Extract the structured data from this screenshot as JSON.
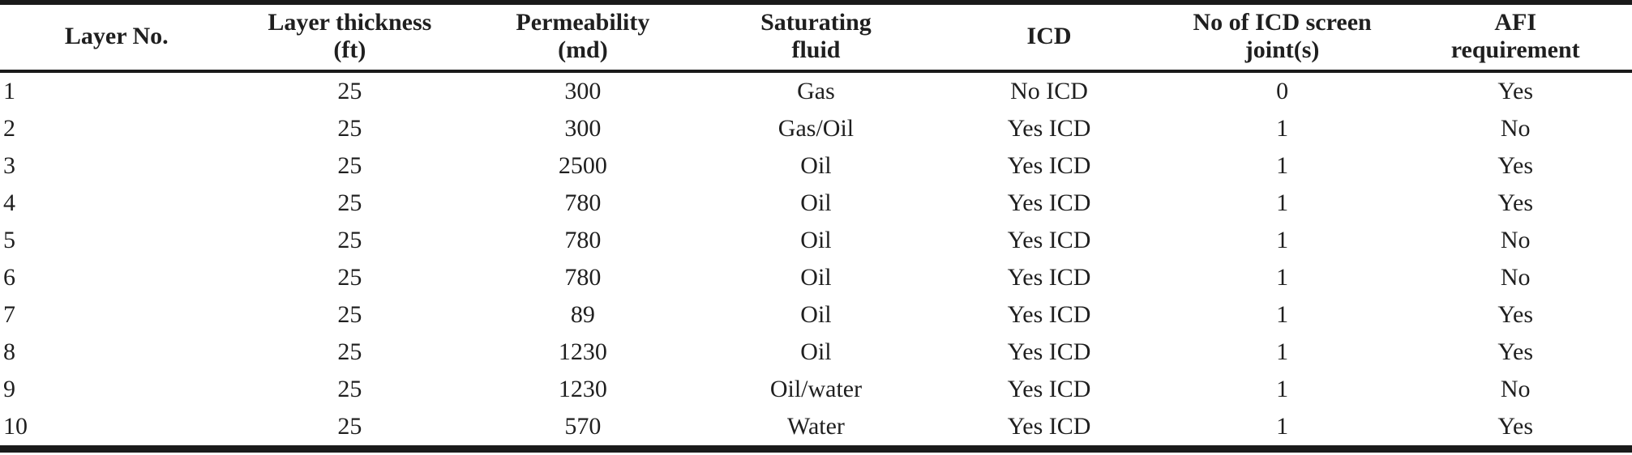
{
  "table": {
    "headers": [
      "Layer No.",
      "Layer thickness\n(ft)",
      "Permeability\n(md)",
      "Saturating\nfluid",
      "ICD",
      "No of ICD screen\njoint(s)",
      "AFI\nrequirement"
    ],
    "rows": [
      [
        "1",
        "25",
        "300",
        "Gas",
        "No ICD",
        "0",
        "Yes"
      ],
      [
        "2",
        "25",
        "300",
        "Gas/Oil",
        "Yes ICD",
        "1",
        "No"
      ],
      [
        "3",
        "25",
        "2500",
        "Oil",
        "Yes ICD",
        "1",
        "Yes"
      ],
      [
        "4",
        "25",
        "780",
        "Oil",
        "Yes ICD",
        "1",
        "Yes"
      ],
      [
        "5",
        "25",
        "780",
        "Oil",
        "Yes ICD",
        "1",
        "No"
      ],
      [
        "6",
        "25",
        "780",
        "Oil",
        "Yes ICD",
        "1",
        "No"
      ],
      [
        "7",
        "25",
        "89",
        "Oil",
        "Yes ICD",
        "1",
        "Yes"
      ],
      [
        "8",
        "25",
        "1230",
        "Oil",
        "Yes ICD",
        "1",
        "Yes"
      ],
      [
        "9",
        "25",
        "1230",
        "Oil/water",
        "Yes ICD",
        "1",
        "No"
      ],
      [
        "10",
        "25",
        "570",
        "Water",
        "Yes ICD",
        "1",
        "Yes"
      ]
    ],
    "colors": {
      "text": "#1f1f1f",
      "rule": "#1a1a1a",
      "background": "#ffffff"
    }
  }
}
